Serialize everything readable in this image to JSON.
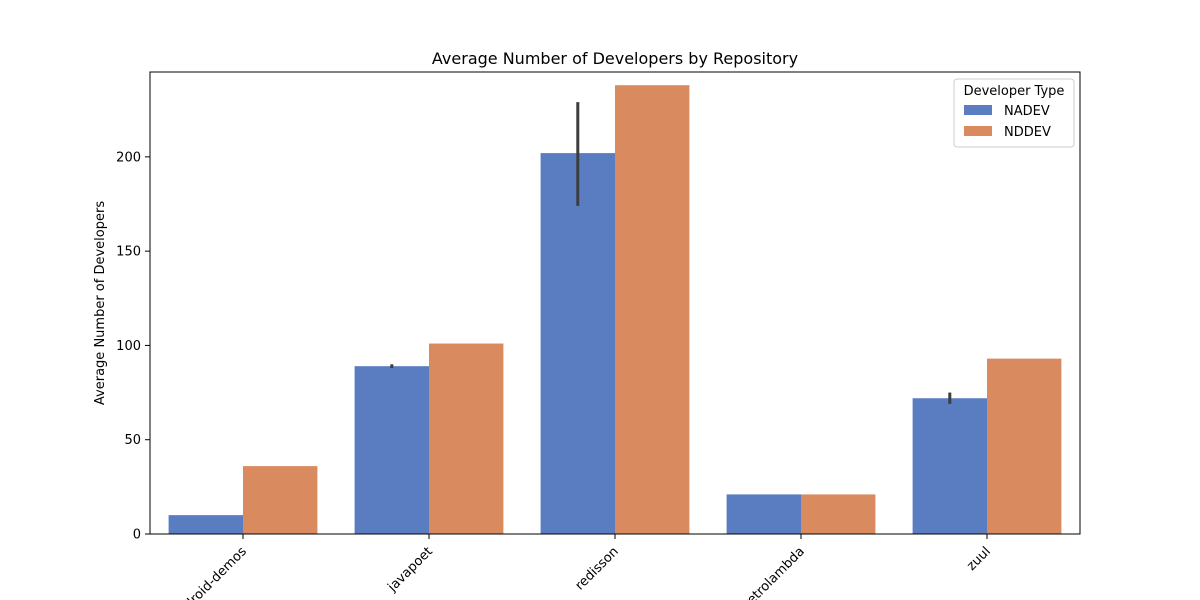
{
  "chart_data": {
    "type": "bar",
    "title": "Average Number of Developers by Repository",
    "xlabel": "",
    "ylabel": "Average Number of Developers",
    "ylim": [
      0,
      245
    ],
    "yticks": [
      0,
      50,
      100,
      150,
      200
    ],
    "categories": [
      "android-demos",
      "javapoet",
      "redisson",
      "retrolambda",
      "zuul"
    ],
    "series": [
      {
        "name": "NADEV",
        "color": "#5a7dc1",
        "values": [
          10,
          89,
          202,
          21,
          72
        ],
        "error_low": [
          null,
          88,
          174,
          null,
          69
        ],
        "error_high": [
          null,
          90,
          229,
          null,
          75
        ]
      },
      {
        "name": "NDDEV",
        "color": "#d98b5f",
        "values": [
          36,
          101,
          238,
          21,
          93
        ]
      }
    ],
    "legend": {
      "title": "Developer Type",
      "position": "top-right"
    },
    "grid": false
  }
}
